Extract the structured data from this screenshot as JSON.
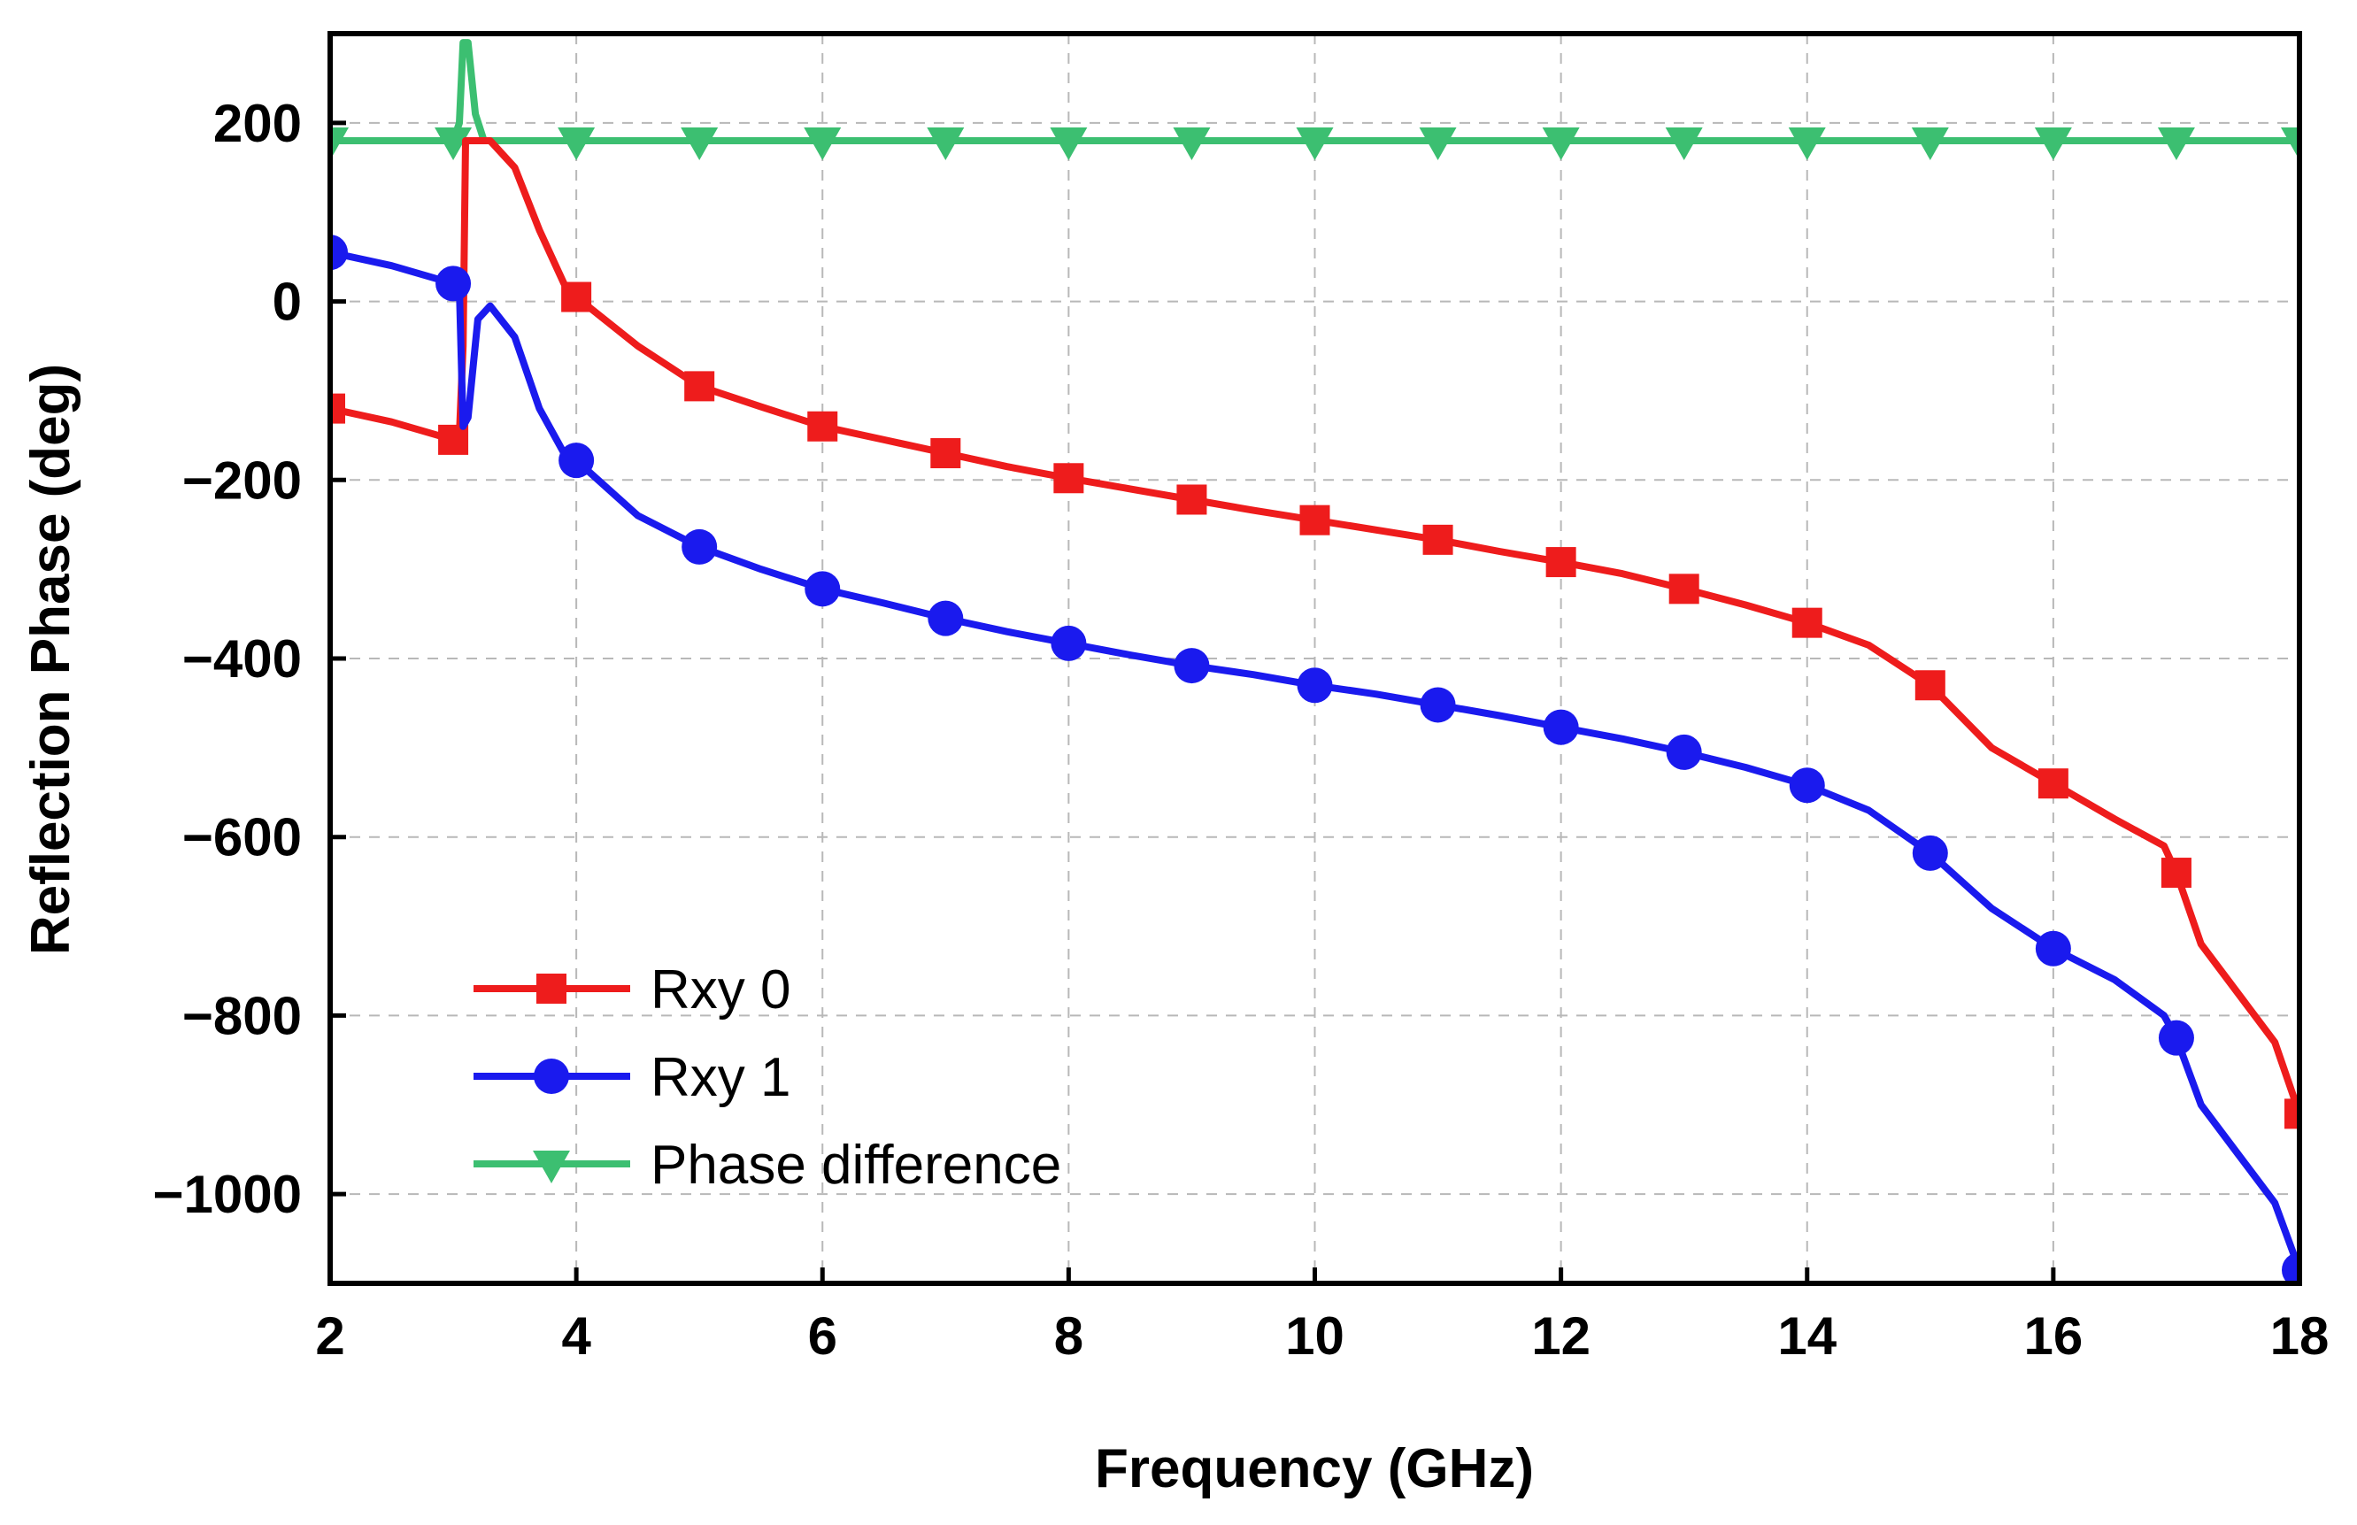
{
  "chart_data": {
    "type": "line",
    "title": "",
    "xlabel": "Frequency (GHz)",
    "ylabel": "Reflection Phase (deg)",
    "xlim": [
      2,
      18
    ],
    "ylim": [
      -1100,
      300
    ],
    "xticks": [
      2,
      4,
      6,
      8,
      10,
      12,
      14,
      16,
      18
    ],
    "yticks": [
      200,
      0,
      -200,
      -400,
      -600,
      -800,
      -1000
    ],
    "ytick_labels": [
      "200",
      "0",
      "−200",
      "−400",
      "−600",
      "−800",
      "−1000"
    ],
    "grid": true,
    "legend_position": "bottom-left",
    "series": [
      {
        "name": "Rxy 0",
        "color": "#ee1c1c",
        "marker": "square",
        "line": [
          [
            2,
            -120
          ],
          [
            2.5,
            -135
          ],
          [
            3,
            -155
          ],
          [
            3.05,
            -150
          ],
          [
            3.08,
            -50
          ],
          [
            3.1,
            180
          ],
          [
            3.3,
            180
          ],
          [
            3.5,
            150
          ],
          [
            3.7,
            80
          ],
          [
            3.9,
            20
          ],
          [
            4,
            5
          ],
          [
            4.5,
            -50
          ],
          [
            5,
            -95
          ],
          [
            5.5,
            -118
          ],
          [
            6,
            -140
          ],
          [
            6.5,
            -155
          ],
          [
            7,
            -170
          ],
          [
            7.5,
            -185
          ],
          [
            8,
            -198
          ],
          [
            8.5,
            -210
          ],
          [
            9,
            -222
          ],
          [
            9.5,
            -234
          ],
          [
            10,
            -245
          ],
          [
            10.5,
            -256
          ],
          [
            11,
            -267
          ],
          [
            11.5,
            -280
          ],
          [
            12,
            -292
          ],
          [
            12.5,
            -305
          ],
          [
            13,
            -322
          ],
          [
            13.5,
            -340
          ],
          [
            14,
            -360
          ],
          [
            14.5,
            -385
          ],
          [
            15,
            -430
          ],
          [
            15.5,
            -500
          ],
          [
            16,
            -540
          ],
          [
            16.5,
            -580
          ],
          [
            16.9,
            -610
          ],
          [
            17,
            -640
          ],
          [
            17.2,
            -720
          ],
          [
            17.5,
            -775
          ],
          [
            17.8,
            -830
          ],
          [
            18,
            -910
          ]
        ],
        "markers": [
          [
            2,
            -120
          ],
          [
            3,
            -155
          ],
          [
            4,
            5
          ],
          [
            5,
            -95
          ],
          [
            6,
            -140
          ],
          [
            7,
            -170
          ],
          [
            8,
            -198
          ],
          [
            9,
            -222
          ],
          [
            10,
            -245
          ],
          [
            11,
            -267
          ],
          [
            12,
            -292
          ],
          [
            13,
            -322
          ],
          [
            14,
            -360
          ],
          [
            15,
            -430
          ],
          [
            16,
            -540
          ],
          [
            17,
            -640
          ],
          [
            18,
            -910
          ]
        ]
      },
      {
        "name": "Rxy 1",
        "color": "#1a1aee",
        "marker": "circle",
        "line": [
          [
            2,
            55
          ],
          [
            2.5,
            40
          ],
          [
            3,
            20
          ],
          [
            3.05,
            15
          ],
          [
            3.08,
            -140
          ],
          [
            3.12,
            -130
          ],
          [
            3.2,
            -20
          ],
          [
            3.3,
            -5
          ],
          [
            3.5,
            -40
          ],
          [
            3.7,
            -120
          ],
          [
            3.9,
            -170
          ],
          [
            4,
            -178
          ],
          [
            4.5,
            -240
          ],
          [
            5,
            -275
          ],
          [
            5.5,
            -300
          ],
          [
            6,
            -322
          ],
          [
            6.5,
            -338
          ],
          [
            7,
            -355
          ],
          [
            7.5,
            -370
          ],
          [
            8,
            -383
          ],
          [
            8.5,
            -396
          ],
          [
            9,
            -408
          ],
          [
            9.5,
            -418
          ],
          [
            10,
            -430
          ],
          [
            10.5,
            -440
          ],
          [
            11,
            -452
          ],
          [
            11.5,
            -464
          ],
          [
            12,
            -477
          ],
          [
            12.5,
            -490
          ],
          [
            13,
            -505
          ],
          [
            13.5,
            -522
          ],
          [
            14,
            -542
          ],
          [
            14.5,
            -570
          ],
          [
            15,
            -618
          ],
          [
            15.5,
            -680
          ],
          [
            16,
            -725
          ],
          [
            16.5,
            -760
          ],
          [
            16.9,
            -800
          ],
          [
            17,
            -825
          ],
          [
            17.2,
            -900
          ],
          [
            17.5,
            -955
          ],
          [
            17.8,
            -1010
          ],
          [
            18,
            -1085
          ]
        ],
        "markers": [
          [
            2,
            55
          ],
          [
            3,
            20
          ],
          [
            4,
            -178
          ],
          [
            5,
            -275
          ],
          [
            6,
            -322
          ],
          [
            7,
            -355
          ],
          [
            8,
            -383
          ],
          [
            9,
            -408
          ],
          [
            10,
            -430
          ],
          [
            11,
            -452
          ],
          [
            12,
            -477
          ],
          [
            13,
            -505
          ],
          [
            14,
            -542
          ],
          [
            15,
            -618
          ],
          [
            16,
            -725
          ],
          [
            17,
            -825
          ],
          [
            18,
            -1085
          ]
        ]
      },
      {
        "name": "Phase difference",
        "color": "#3cbf71",
        "marker": "triangle-down",
        "line": [
          [
            2,
            180
          ],
          [
            3,
            180
          ],
          [
            3.05,
            200
          ],
          [
            3.08,
            290
          ],
          [
            3.12,
            290
          ],
          [
            3.18,
            210
          ],
          [
            3.25,
            180
          ],
          [
            18,
            180
          ]
        ],
        "markers": [
          [
            2,
            180
          ],
          [
            3,
            180
          ],
          [
            4,
            180
          ],
          [
            5,
            180
          ],
          [
            6,
            180
          ],
          [
            7,
            180
          ],
          [
            8,
            180
          ],
          [
            9,
            180
          ],
          [
            10,
            180
          ],
          [
            11,
            180
          ],
          [
            12,
            180
          ],
          [
            13,
            180
          ],
          [
            14,
            180
          ],
          [
            15,
            180
          ],
          [
            16,
            180
          ],
          [
            17,
            180
          ],
          [
            18,
            180
          ]
        ]
      }
    ]
  }
}
